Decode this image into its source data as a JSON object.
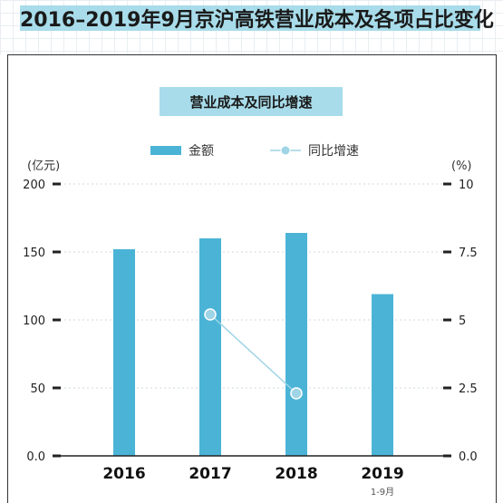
{
  "title": "2016–2019年9月京沪高铁营业成本及各项占比变化",
  "subtitle": "营业成本及同比增速",
  "chart_data": {
    "type": "bar",
    "categories": [
      "2016",
      "2017",
      "2018",
      "2019"
    ],
    "category_sublabels": [
      "",
      "",
      "",
      "1-9月"
    ],
    "series": [
      {
        "name": "金额",
        "type": "bar",
        "axis": "left",
        "color": "#4bb4d6",
        "values": [
          152,
          160,
          164,
          119
        ]
      },
      {
        "name": "同比增速",
        "type": "line",
        "axis": "right",
        "color": "#9fd4e6",
        "values": [
          null,
          5.2,
          2.3,
          null
        ]
      }
    ],
    "left_axis": {
      "unit": "(亿元)",
      "ylim": [
        0,
        200
      ],
      "ticks": [
        "0.0",
        "50",
        "100",
        "150",
        "200"
      ]
    },
    "right_axis": {
      "unit": "(%)",
      "ylim": [
        0,
        10
      ],
      "ticks": [
        "0.0",
        "2.5",
        "5",
        "7.5",
        "10"
      ]
    },
    "legend_position": "top",
    "grid": true
  }
}
